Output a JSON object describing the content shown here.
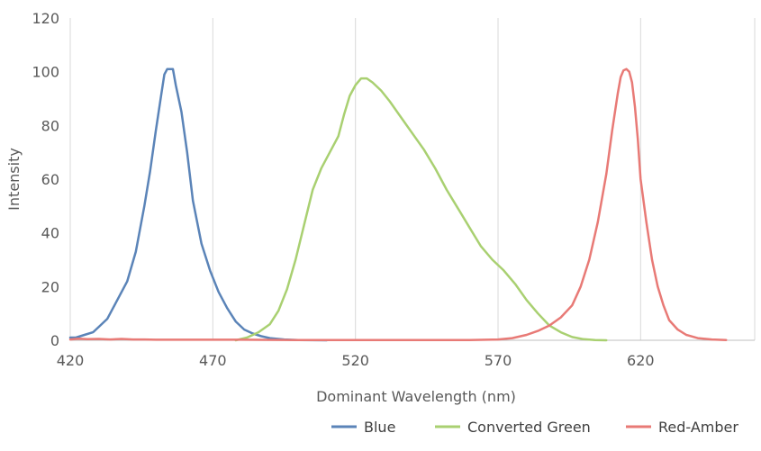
{
  "chart_data": {
    "type": "line",
    "xlabel": "Dominant Wavelength (nm)",
    "ylabel": "Intensity",
    "xlim": [
      420,
      660
    ],
    "ylim": [
      0,
      120
    ],
    "xticks": [
      420,
      470,
      520,
      570,
      620
    ],
    "yticks": [
      0,
      20,
      40,
      60,
      80,
      100,
      120
    ],
    "grid": "vertical",
    "legend": "bottom-right",
    "series": [
      {
        "name": "Blue",
        "color": "#5b84b8",
        "points": [
          [
            420,
            1
          ],
          [
            422,
            1
          ],
          [
            425,
            2
          ],
          [
            428,
            3
          ],
          [
            430,
            5
          ],
          [
            433,
            8
          ],
          [
            436,
            14
          ],
          [
            440,
            22
          ],
          [
            443,
            33
          ],
          [
            446,
            50
          ],
          [
            448,
            63
          ],
          [
            450,
            78
          ],
          [
            452,
            92
          ],
          [
            453,
            99
          ],
          [
            454,
            101
          ],
          [
            456,
            101
          ],
          [
            457,
            95
          ],
          [
            459,
            85
          ],
          [
            461,
            70
          ],
          [
            463,
            52
          ],
          [
            466,
            36
          ],
          [
            469,
            26
          ],
          [
            472,
            18
          ],
          [
            475,
            12
          ],
          [
            478,
            7
          ],
          [
            481,
            4
          ],
          [
            484,
            2.5
          ],
          [
            487,
            1.5
          ],
          [
            490,
            0.8
          ],
          [
            495,
            0.3
          ],
          [
            500,
            0.1
          ],
          [
            510,
            0
          ]
        ]
      },
      {
        "name": "Converted Green",
        "color": "#a9d071",
        "points": [
          [
            478,
            0
          ],
          [
            482,
            1
          ],
          [
            486,
            3
          ],
          [
            490,
            6
          ],
          [
            493,
            11
          ],
          [
            496,
            19
          ],
          [
            499,
            30
          ],
          [
            502,
            43
          ],
          [
            505,
            56
          ],
          [
            508,
            64
          ],
          [
            511,
            70
          ],
          [
            514,
            76
          ],
          [
            516,
            84
          ],
          [
            518,
            91
          ],
          [
            520,
            95
          ],
          [
            522,
            97.5
          ],
          [
            524,
            97.5
          ],
          [
            526,
            96
          ],
          [
            529,
            93
          ],
          [
            532,
            89
          ],
          [
            536,
            83
          ],
          [
            540,
            77
          ],
          [
            544,
            71
          ],
          [
            548,
            64
          ],
          [
            552,
            56
          ],
          [
            556,
            49
          ],
          [
            560,
            42
          ],
          [
            564,
            35
          ],
          [
            568,
            30
          ],
          [
            572,
            26
          ],
          [
            576,
            21
          ],
          [
            580,
            15
          ],
          [
            584,
            10
          ],
          [
            588,
            5.5
          ],
          [
            592,
            3
          ],
          [
            596,
            1.2
          ],
          [
            600,
            0.4
          ],
          [
            604,
            0.1
          ],
          [
            608,
            0
          ]
        ]
      },
      {
        "name": "Red-Amber",
        "color": "#e87a76",
        "points": [
          [
            420,
            0.3
          ],
          [
            423,
            0.6
          ],
          [
            426,
            0.4
          ],
          [
            430,
            0.5
          ],
          [
            434,
            0.3
          ],
          [
            438,
            0.5
          ],
          [
            442,
            0.3
          ],
          [
            446,
            0.3
          ],
          [
            450,
            0.2
          ],
          [
            460,
            0.2
          ],
          [
            470,
            0.2
          ],
          [
            480,
            0.2
          ],
          [
            500,
            0.1
          ],
          [
            520,
            0.1
          ],
          [
            540,
            0.1
          ],
          [
            560,
            0.1
          ],
          [
            570,
            0.3
          ],
          [
            575,
            0.8
          ],
          [
            580,
            2
          ],
          [
            584,
            3.5
          ],
          [
            588,
            5.5
          ],
          [
            592,
            8.5
          ],
          [
            596,
            13
          ],
          [
            599,
            20
          ],
          [
            602,
            30
          ],
          [
            605,
            44
          ],
          [
            608,
            62
          ],
          [
            610,
            78
          ],
          [
            612,
            92
          ],
          [
            613,
            98
          ],
          [
            614,
            100.5
          ],
          [
            615,
            101
          ],
          [
            616,
            100
          ],
          [
            617,
            96
          ],
          [
            618,
            87
          ],
          [
            619,
            75
          ],
          [
            620,
            60
          ],
          [
            622,
            44
          ],
          [
            624,
            30
          ],
          [
            626,
            20
          ],
          [
            628,
            13
          ],
          [
            630,
            7.5
          ],
          [
            633,
            4
          ],
          [
            636,
            2
          ],
          [
            640,
            0.8
          ],
          [
            645,
            0.3
          ],
          [
            650,
            0.1
          ]
        ]
      }
    ]
  }
}
